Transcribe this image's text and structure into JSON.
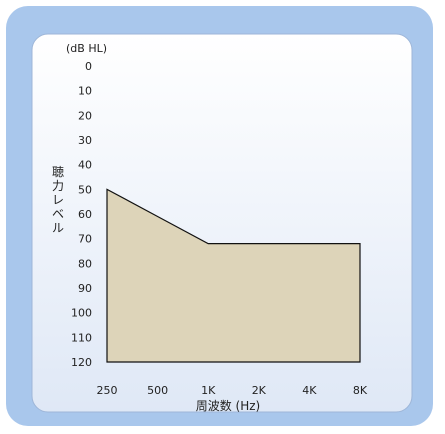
{
  "chart_data": {
    "type": "area",
    "title": "",
    "ylabel": "聴力レベル",
    "yunit": "(dB HL)",
    "xlabel": "周波数 (Hz)",
    "ylim": [
      0,
      120
    ],
    "y_inverted": true,
    "y_ticks": [
      "0",
      "10",
      "20",
      "30",
      "40",
      "50",
      "60",
      "70",
      "80",
      "90",
      "100",
      "110",
      "120"
    ],
    "categories": [
      "250",
      "500",
      "1K",
      "2K",
      "4K",
      "8K"
    ],
    "series": [
      {
        "values": [
          50,
          61,
          72,
          72,
          72,
          72
        ],
        "fill_to": 120
      }
    ],
    "grid": false,
    "colors": {
      "fill": "#ddd4b9",
      "stroke": "#111111",
      "frame": "#a9c7ec",
      "plot_bg": "#eef3fb"
    }
  }
}
